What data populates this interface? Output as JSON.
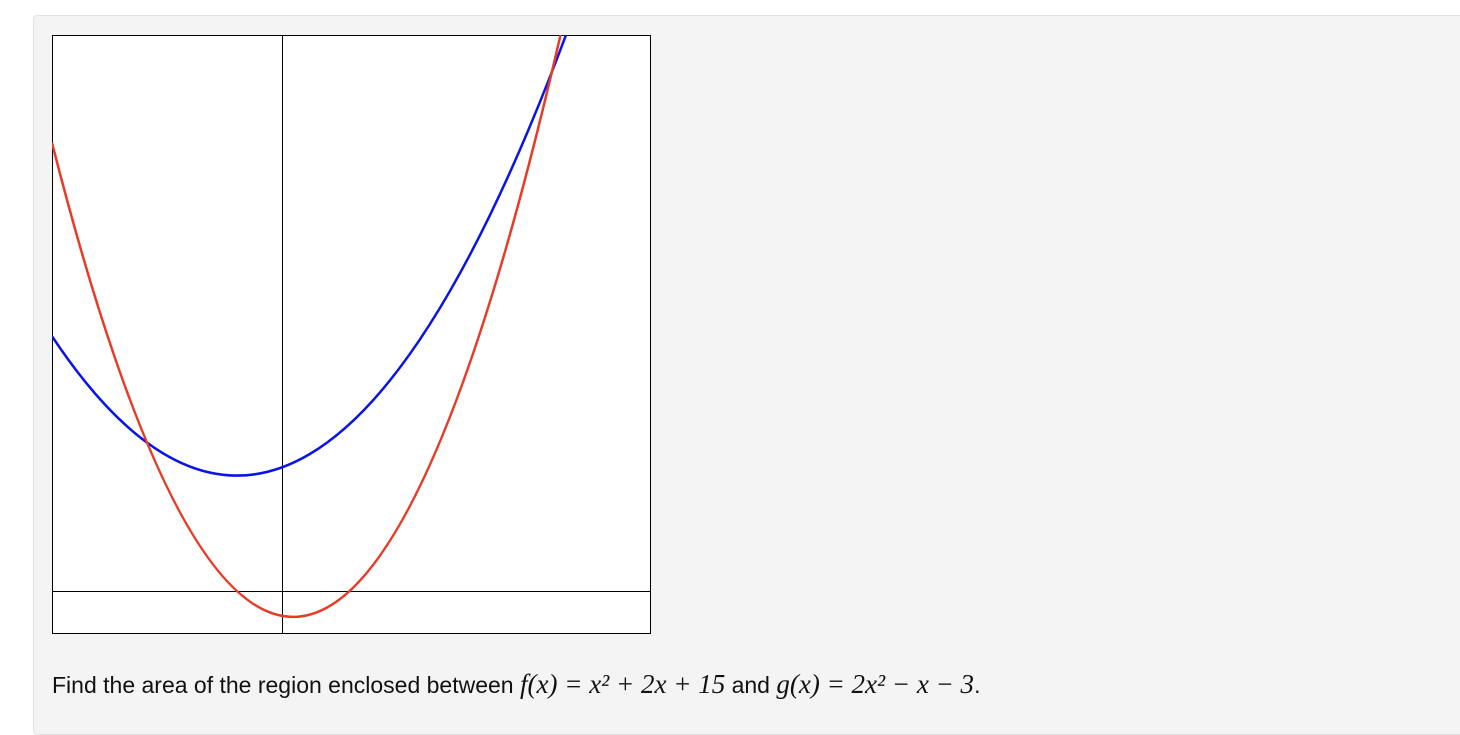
{
  "problem": {
    "lead": "Find the area of the region enclosed between",
    "f": "f(x) = x² + 2x + 15",
    "joiner": "and",
    "g": "g(x) = 2x² − x − 3",
    "end": "."
  }
}
